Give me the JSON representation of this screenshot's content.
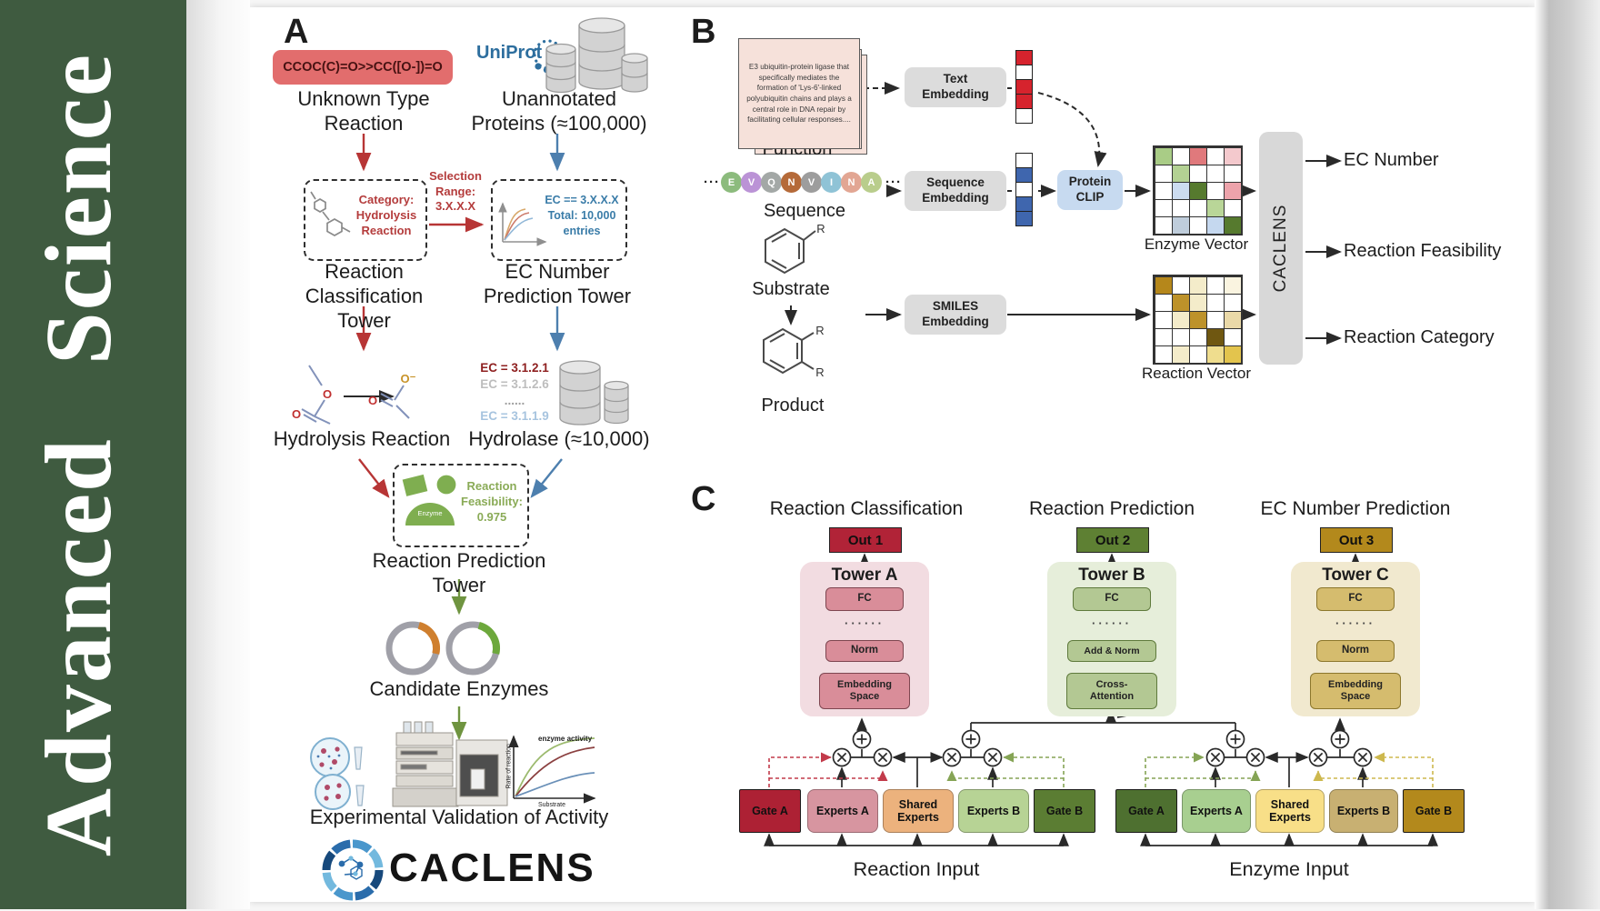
{
  "journal": {
    "spine_text": "Advanced Science",
    "spine_color": "#3f5b40"
  },
  "colors": {
    "smiles_bg": "#e26d6d",
    "red_arrow": "#b73535",
    "blue_arrow": "#4d7fae",
    "green_arrow": "#6f9440",
    "gate_red": "#c23a4a",
    "gate_green": "#85a455",
    "gate_yellow": "#cdb84e"
  },
  "atoms": {
    "o": "O",
    "o_minus": "O⁻",
    "r": "R"
  },
  "panels": {
    "a": {
      "label": "A",
      "smiles": "CCOC(C)=O>>CC([O-])=O",
      "unknown_reaction": "Unknown Type\nReaction",
      "uniprot": "UniProt",
      "unannotated": "Unannotated\nProteins (≈100,000)",
      "category_box": "Category:\nHydrolysis\nReaction",
      "selection": "Selection\nRange:\n3.X.X.X",
      "ec_box": "EC == 3.X.X.X\nTotal: 10,000\nentries",
      "rc_tower": "Reaction\nClassification Tower",
      "ec_tower": "EC Number\nPrediction Tower",
      "ec_list": [
        {
          "text": "EC = 3.1.2.1",
          "color": "#8e1f1f"
        },
        {
          "text": "EC = 3.1.2.6",
          "color": "#bdbdbd"
        },
        {
          "text": "......",
          "color": "#9e9e9e"
        },
        {
          "text": "EC = 3.1.1.9",
          "color": "#a7c4df"
        }
      ],
      "hydrolysis": "Hydrolysis Reaction",
      "hydrolase": "Hydrolase (≈10,000)",
      "enzyme_icon_label": "Enzyme",
      "feasibility": "Reaction\nFeasibility:\n0.975",
      "rp_tower": "Reaction Prediction Tower",
      "candidates": "Candidate Enzymes",
      "graph": {
        "title": "enzyme activity",
        "ylabel": "Rate of reaction",
        "xlabel": "Substrate"
      },
      "validation": "Experimental Validation of Activity",
      "brand": "CACLENS"
    },
    "b": {
      "label": "B",
      "function_card": "E3 ubiquitin-protein ligase that specifically mediates the formation of 'Lys-6'-linked polyubiquitin chains and plays a central role in DNA repair by facilitating cellular responses....",
      "function": "Function",
      "seq_dots": "···",
      "residues": [
        {
          "t": "E",
          "c": "#8cbb7d"
        },
        {
          "t": "V",
          "c": "#bb93d6"
        },
        {
          "t": "Q",
          "c": "#a3a8a6"
        },
        {
          "t": "N",
          "c": "#b56a39"
        },
        {
          "t": "V",
          "c": "#9d9d9d"
        },
        {
          "t": "I",
          "c": "#8fc3d6"
        },
        {
          "t": "N",
          "c": "#e2a693"
        },
        {
          "t": "A",
          "c": "#b9cd8c"
        }
      ],
      "sequence": "Sequence",
      "substrate": "Substrate",
      "product": "Product",
      "text_embedding": "Text\nEmbedding",
      "sequence_embedding": "Sequence\nEmbedding",
      "smiles_embedding": "SMILES\nEmbedding",
      "protein_clip": "Protein\nCLIP",
      "text_vector": [
        "#d6232d",
        "#ffffff",
        "#d6232d",
        "#d6232d",
        "#ffffff"
      ],
      "seq_vector": [
        "#ffffff",
        "#3f66ae",
        "#ffffff",
        "#3f66ae",
        "#3f66ae"
      ],
      "enzyme_grid": [
        [
          "#a9cc86",
          "#ffffff",
          "#e0797c",
          "#ffffff",
          "#f4c9cd"
        ],
        [
          "#ffffff",
          "#b3d193",
          "#ffffff",
          "#ffffff",
          "#ffffff"
        ],
        [
          "#ffffff",
          "#ccdcf0",
          "#567a2e",
          "#ffffff",
          "#eda3ab"
        ],
        [
          "#ffffff",
          "#ffffff",
          "#ffffff",
          "#b9d698",
          "#ffffff"
        ],
        [
          "#ffffff",
          "#bfcddb",
          "#ffffff",
          "#c5d8ef",
          "#567a2e"
        ]
      ],
      "reaction_grid": [
        [
          "#b5871b",
          "#ffffff",
          "#f4ecca",
          "#ffffff",
          "#faf4e0"
        ],
        [
          "#ffffff",
          "#bd922a",
          "#f4ecca",
          "#ffffff",
          "#ffffff"
        ],
        [
          "#ffffff",
          "#f4ecca",
          "#bd922a",
          "#ffffff",
          "#ead9a8"
        ],
        [
          "#ffffff",
          "#ffffff",
          "#ffffff",
          "#6f5711",
          "#ffffff"
        ],
        [
          "#ffffff",
          "#f4ecca",
          "#ffffff",
          "#efdd8e",
          "#e3c44d"
        ]
      ],
      "enzyme_vector_label": "Enzyme Vector",
      "reaction_vector_label": "Reaction Vector",
      "caclens": "CACLENS",
      "outputs": [
        "EC Number",
        "Reaction Feasibility",
        "Reaction Category"
      ]
    },
    "c": {
      "label": "C",
      "headings": [
        "Reaction Classification",
        "Reaction Prediction",
        "EC Number Prediction"
      ],
      "outs": [
        {
          "t": "Out 1",
          "c": "#b12337"
        },
        {
          "t": "Out 2",
          "c": "#5e8033"
        },
        {
          "t": "Out 3",
          "c": "#b3891c"
        }
      ],
      "towers": {
        "a": {
          "title": "Tower A",
          "bg": "#f2dce1",
          "fc": "FC",
          "dots": "······",
          "norm": "Norm",
          "embed": "Embedding\nSpace"
        },
        "b": {
          "title": "Tower B",
          "bg": "#e6eeda",
          "fc": "FC",
          "dots": "······",
          "addnorm": "Add & Norm",
          "cross": "Cross-\nAttention"
        },
        "c": {
          "title": "Tower C",
          "bg": "#f1e9cf",
          "fc": "FC",
          "dots": "······",
          "norm": "Norm",
          "embed": "Embedding\nSpace"
        }
      },
      "reaction_moe": [
        {
          "label": "Gate A",
          "color": "#ad2134",
          "shape": "gate"
        },
        {
          "label": "Experts A",
          "color": "#d795a0",
          "shape": "expert"
        },
        {
          "label": "Shared\nExperts",
          "color": "#ecb27d",
          "shape": "expert"
        },
        {
          "label": "Experts B",
          "color": "#b7d395",
          "shape": "expert"
        },
        {
          "label": "Gate B",
          "color": "#5b7d33",
          "shape": "gate"
        }
      ],
      "enzyme_moe": [
        {
          "label": "Gate A",
          "color": "#4e7030",
          "shape": "gate"
        },
        {
          "label": "Experts A",
          "color": "#a8cf90",
          "shape": "expert"
        },
        {
          "label": "Shared\nExperts",
          "color": "#f8df88",
          "shape": "expert"
        },
        {
          "label": "Experts B",
          "color": "#c8b072",
          "shape": "expert"
        },
        {
          "label": "Gate B",
          "color": "#b3891c",
          "shape": "gate"
        }
      ],
      "reaction_input": "Reaction Input",
      "enzyme_input": "Enzyme Input"
    }
  }
}
